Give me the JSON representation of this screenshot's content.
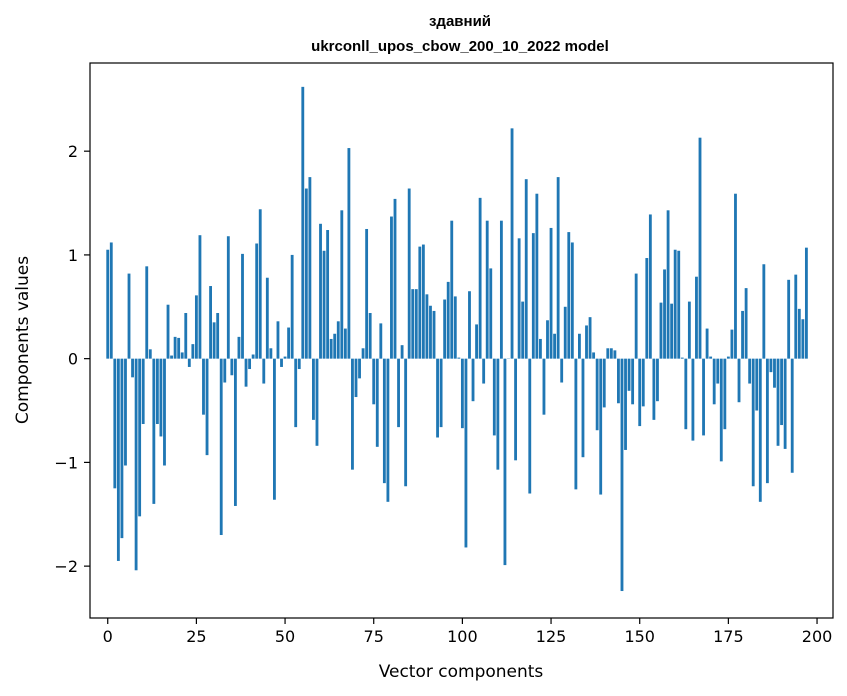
{
  "chart_data": {
    "type": "bar",
    "title_line1": "здавний",
    "title_line2": "ukrconll_upos_cbow_200_10_2022 model",
    "xlabel": "Vector components",
    "ylabel": "Components values",
    "xlim": [
      -5,
      204.5
    ],
    "ylim": [
      -2.5,
      2.85
    ],
    "xticks": [
      0,
      25,
      50,
      75,
      100,
      125,
      150,
      175,
      200
    ],
    "yticks": [
      -2,
      -1,
      0,
      1,
      2
    ],
    "ytick_labels": [
      "−2",
      "−1",
      "0",
      "1",
      "2"
    ],
    "bar_color": "#1f77b4",
    "grid": false,
    "values": [
      1.05,
      1.12,
      -1.25,
      -1.95,
      -1.73,
      -1.03,
      0.82,
      -0.18,
      -2.04,
      -1.52,
      -0.63,
      0.89,
      0.09,
      -1.4,
      -0.63,
      -0.75,
      -1.03,
      0.52,
      0.03,
      0.21,
      0.2,
      0.06,
      0.44,
      -0.08,
      0.14,
      0.61,
      1.19,
      -0.54,
      -0.93,
      0.7,
      0.35,
      0.44,
      -1.7,
      -0.23,
      1.18,
      -0.16,
      -1.42,
      0.21,
      1.01,
      -0.27,
      -0.1,
      0.04,
      1.11,
      1.44,
      -0.24,
      0.78,
      0.1,
      -1.36,
      0.36,
      -0.08,
      0.02,
      0.3,
      1.0,
      -0.66,
      -0.1,
      2.62,
      1.64,
      1.75,
      -0.59,
      -0.84,
      1.3,
      1.04,
      1.24,
      0.19,
      0.24,
      0.36,
      1.43,
      0.29,
      2.03,
      -1.07,
      -0.37,
      -0.19,
      0.1,
      1.25,
      0.44,
      -0.44,
      -0.85,
      0.34,
      -1.2,
      -1.38,
      1.37,
      1.54,
      -0.66,
      0.13,
      -1.23,
      1.64,
      0.67,
      0.67,
      1.08,
      1.1,
      0.62,
      0.51,
      0.46,
      -0.76,
      -0.66,
      0.57,
      0.74,
      1.33,
      0.6,
      0.01,
      -0.67,
      -1.82,
      0.65,
      -0.41,
      0.33,
      1.55,
      -0.24,
      1.33,
      0.87,
      -0.74,
      -1.07,
      1.33,
      -1.99,
      0.0,
      2.22,
      -0.98,
      1.16,
      0.55,
      1.73,
      -1.3,
      1.21,
      1.59,
      0.19,
      -0.54,
      0.37,
      1.26,
      0.24,
      1.75,
      -0.23,
      0.5,
      1.22,
      1.12,
      -1.26,
      0.24,
      -0.95,
      0.32,
      0.4,
      0.06,
      -0.69,
      -1.31,
      -0.47,
      0.1,
      0.1,
      0.08,
      -0.43,
      -2.24,
      -0.88,
      -0.31,
      -0.44,
      0.82,
      -0.65,
      -0.46,
      0.97,
      1.39,
      -0.59,
      -0.41,
      0.54,
      0.86,
      1.43,
      0.53,
      1.05,
      1.04,
      0.01,
      -0.68,
      0.55,
      -0.79,
      0.79,
      2.13,
      -0.74,
      0.29,
      0.02,
      -0.44,
      -0.24,
      -0.99,
      -0.68,
      0.02,
      0.28,
      1.59,
      -0.42,
      0.46,
      0.68,
      -0.24,
      -1.23,
      -0.5,
      -1.38,
      0.91,
      -1.2,
      -0.13,
      -0.28,
      -0.84,
      -0.64,
      -0.87,
      0.76,
      -1.1,
      0.81,
      0.48,
      0.38,
      1.07
    ]
  }
}
